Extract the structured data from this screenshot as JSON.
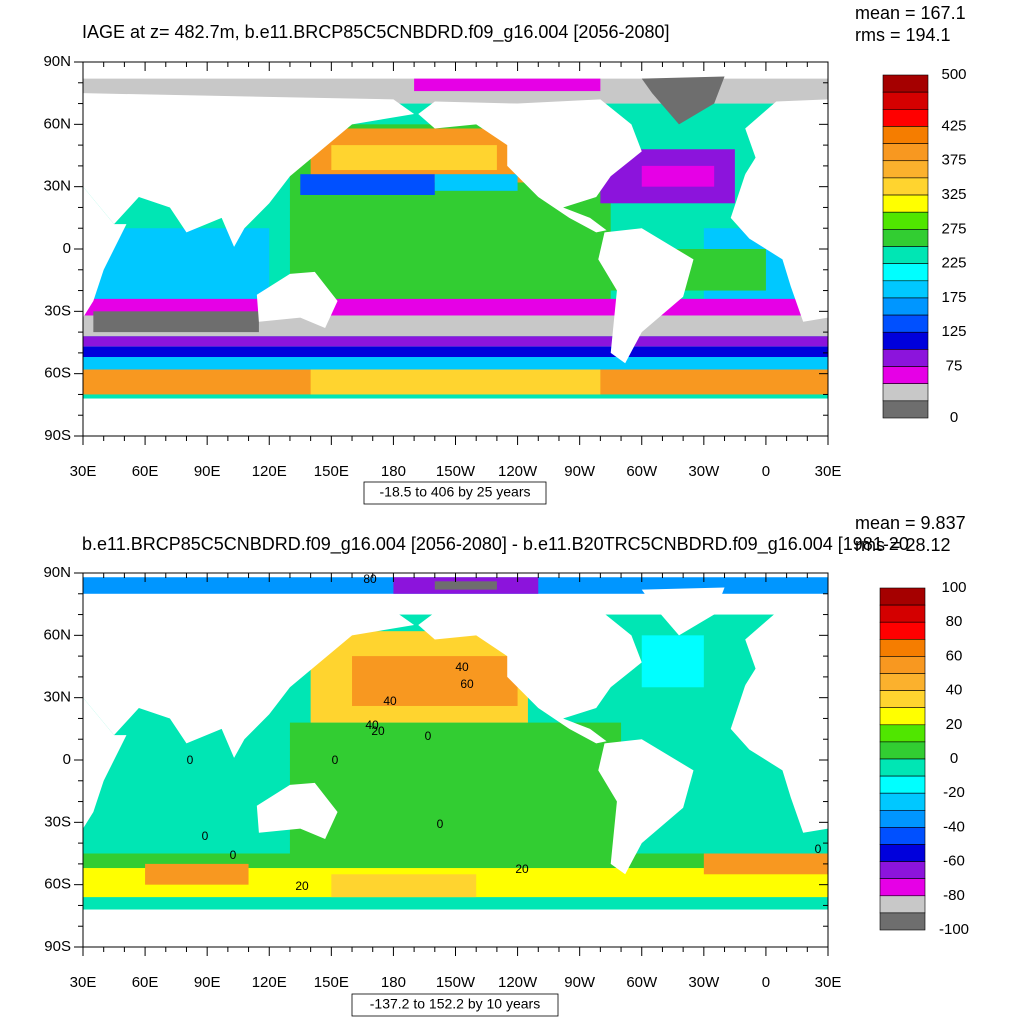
{
  "panels": [
    {
      "title": "IAGE at z= 482.7m, b.e11.BRCP85C5CNBDRD.f09_g16.004 [2056-2080]",
      "mean": "mean = 167.1",
      "rms": "rms = 194.1",
      "info": "-18.5 to 406 by 25 years",
      "lat_labels": [
        "90N",
        "60N",
        "30N",
        "0",
        "30S",
        "60S",
        "90S"
      ],
      "lon_labels": [
        "30E",
        "60E",
        "90E",
        "120E",
        "150E",
        "180",
        "150W",
        "120W",
        "90W",
        "60W",
        "30W",
        "0",
        "30E"
      ],
      "colorbar": {
        "colors": [
          "#a50000",
          "#d40000",
          "#ff0000",
          "#f57d00",
          "#f89820",
          "#fbb12d",
          "#ffd42f",
          "#ffff00",
          "#50e600",
          "#32cd32",
          "#00e6b4",
          "#00ffff",
          "#00c8ff",
          "#0096ff",
          "#0050ff",
          "#0000dc",
          "#8c14dc",
          "#e600e6",
          "#c8c8c8",
          "#6e6e6e"
        ],
        "labels": [
          "500",
          "425",
          "375",
          "325",
          "275",
          "225",
          "175",
          "125",
          "75",
          "0"
        ]
      }
    },
    {
      "title": "b.e11.BRCP85C5CNBDRD.f09_g16.004 [2056-2080] - b.e11.B20TRC5CNBDRD.f09_g16.004 [1981-20",
      "mean": "mean = 9.837",
      "rms": "rms = 28.12",
      "info": "-137.2 to 152.2 by 10 years",
      "lat_labels": [
        "90N",
        "60N",
        "30N",
        "0",
        "30S",
        "60S",
        "90S"
      ],
      "lon_labels": [
        "30E",
        "60E",
        "90E",
        "120E",
        "150E",
        "180",
        "150W",
        "120W",
        "90W",
        "60W",
        "30W",
        "0",
        "30E"
      ],
      "colorbar": {
        "colors": [
          "#a50000",
          "#d40000",
          "#ff0000",
          "#f57d00",
          "#f89820",
          "#fbb12d",
          "#ffd42f",
          "#ffff00",
          "#50e600",
          "#32cd32",
          "#00e6b4",
          "#00ffff",
          "#00c8ff",
          "#0096ff",
          "#0050ff",
          "#0000dc",
          "#8c14dc",
          "#e600e6",
          "#c8c8c8",
          "#6e6e6e"
        ],
        "labels": [
          "100",
          "80",
          "60",
          "40",
          "20",
          "0",
          "-20",
          "-40",
          "-60",
          "-80",
          "-100"
        ]
      },
      "contour_labels": [
        "80",
        "40",
        "60",
        "40",
        "40",
        "20",
        "0",
        "0",
        "0",
        "0",
        "0",
        "0",
        "20",
        "20",
        "0"
      ]
    }
  ]
}
